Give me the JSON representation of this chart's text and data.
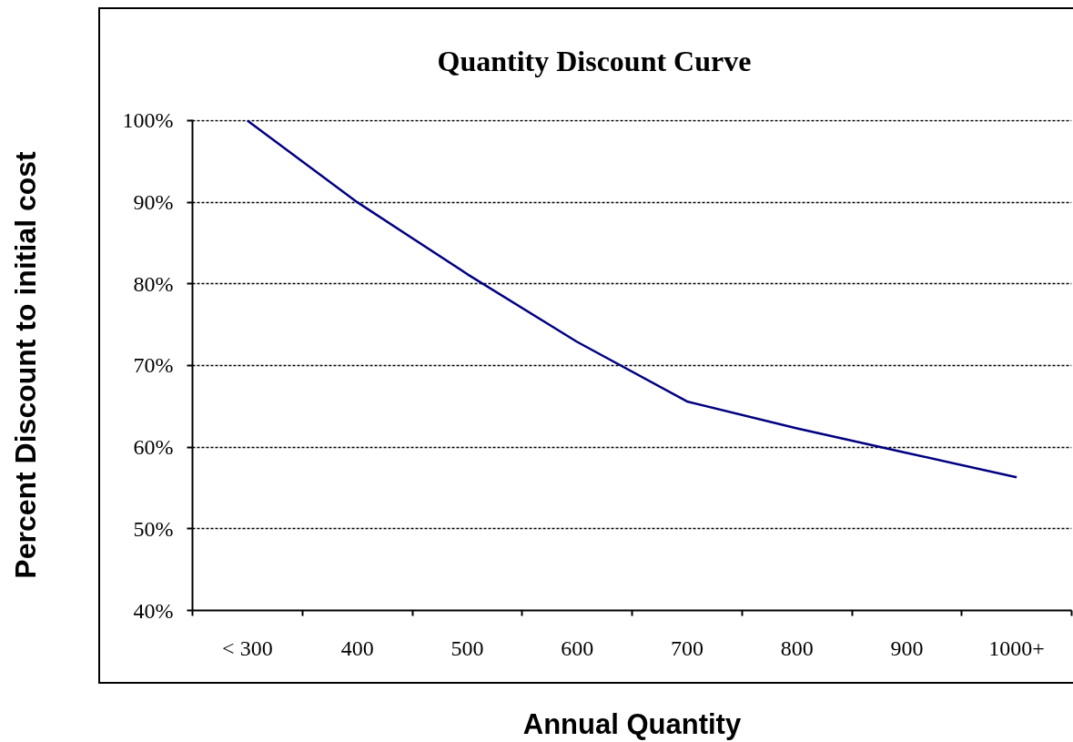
{
  "chart_data": {
    "type": "line",
    "title": "Quantity Discount Curve",
    "xlabel": "Annual Quantity",
    "ylabel": "Percent Discount to initial cost",
    "categories": [
      "< 300",
      "400",
      "500",
      "600",
      "700",
      "800",
      "900",
      "1000+"
    ],
    "series": [
      {
        "color": "#000080",
        "values": [
          100,
          90,
          81.2,
          72.9,
          65.6,
          62.3,
          59.3,
          56.3
        ]
      }
    ],
    "ylim": [
      40,
      100
    ],
    "yticks": [
      {
        "value": 40,
        "label": "40%"
      },
      {
        "value": 50,
        "label": "50%"
      },
      {
        "value": 60,
        "label": "60%"
      },
      {
        "value": 70,
        "label": "70%"
      },
      {
        "value": 80,
        "label": "80%"
      },
      {
        "value": 90,
        "label": "90%"
      },
      {
        "value": 100,
        "label": "100%"
      }
    ],
    "grid": "y"
  }
}
